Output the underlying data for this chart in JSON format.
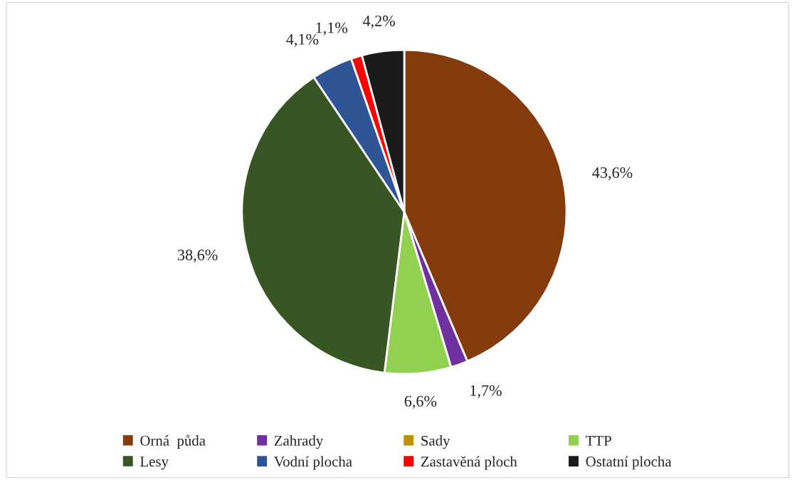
{
  "chart_data": {
    "type": "pie",
    "categories": [
      "Orná  půda",
      "Zahrady",
      "Sady",
      "TTP",
      "Lesy",
      "Vodní plocha",
      "Zastavěná ploch",
      "Ostatní plocha"
    ],
    "values": [
      43.6,
      1.7,
      0,
      6.6,
      38.6,
      4.1,
      1.1,
      4.2
    ],
    "value_labels": [
      "43,6%",
      "1,7%",
      null,
      "6,6%",
      "38,6%",
      "4,1%",
      "1,1%",
      "4,2%"
    ],
    "colors": [
      "#843c0c",
      "#7030a0",
      "#bf9000",
      "#92d050",
      "#375623",
      "#2f5597",
      "#ff0000",
      "#1a1a1a"
    ],
    "legend": "bottom"
  }
}
